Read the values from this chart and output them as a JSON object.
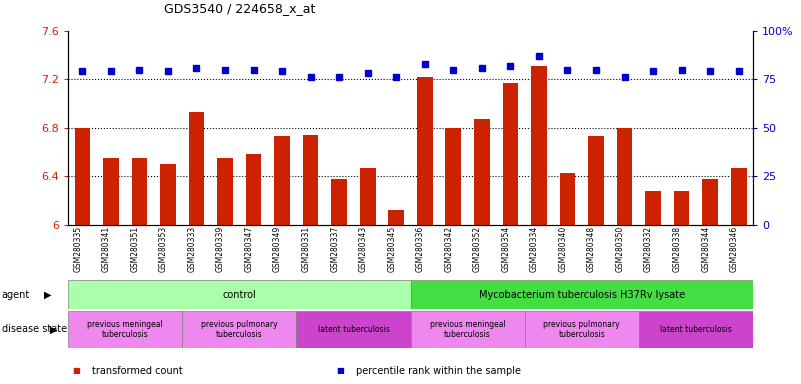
{
  "title": "GDS3540 / 224658_x_at",
  "samples": [
    "GSM280335",
    "GSM280341",
    "GSM280351",
    "GSM280353",
    "GSM280333",
    "GSM280339",
    "GSM280347",
    "GSM280349",
    "GSM280331",
    "GSM280337",
    "GSM280343",
    "GSM280345",
    "GSM280336",
    "GSM280342",
    "GSM280352",
    "GSM280354",
    "GSM280334",
    "GSM280340",
    "GSM280348",
    "GSM280350",
    "GSM280332",
    "GSM280338",
    "GSM280344",
    "GSM280346"
  ],
  "bar_values": [
    6.8,
    6.55,
    6.55,
    6.5,
    6.93,
    6.55,
    6.58,
    6.73,
    6.74,
    6.38,
    6.47,
    6.12,
    7.22,
    6.8,
    6.87,
    7.17,
    7.31,
    6.43,
    6.73,
    6.8,
    6.28,
    6.28,
    6.38,
    6.47
  ],
  "percentile_values": [
    79,
    79,
    80,
    79,
    81,
    80,
    80,
    79,
    76,
    76,
    78,
    76,
    83,
    80,
    81,
    82,
    87,
    80,
    80,
    76,
    79,
    80,
    79,
    79
  ],
  "ylim_left": [
    6.0,
    7.6
  ],
  "ylim_right": [
    0,
    100
  ],
  "yticks_left": [
    6.0,
    6.4,
    6.8,
    7.2,
    7.6
  ],
  "ytick_labels_left": [
    "6",
    "6.4",
    "6.8",
    "7.2",
    "7.6"
  ],
  "yticks_right": [
    0,
    25,
    50,
    75,
    100
  ],
  "ytick_labels_right": [
    "0",
    "25",
    "50",
    "75",
    "100%"
  ],
  "bar_color": "#cc2200",
  "dot_color": "#0000cc",
  "agent_groups": [
    {
      "label": "control",
      "start": 0,
      "end": 11,
      "color": "#aaffaa"
    },
    {
      "label": "Mycobacterium tuberculosis H37Rv lysate",
      "start": 12,
      "end": 23,
      "color": "#44dd44"
    }
  ],
  "disease_groups": [
    {
      "label": "previous meningeal\ntuberculosis",
      "start": 0,
      "end": 3,
      "color": "#ee88ee"
    },
    {
      "label": "previous pulmonary\ntuberculosis",
      "start": 4,
      "end": 7,
      "color": "#ee88ee"
    },
    {
      "label": "latent tuberculosis",
      "start": 8,
      "end": 11,
      "color": "#cc44cc"
    },
    {
      "label": "previous meningeal\ntuberculosis",
      "start": 12,
      "end": 15,
      "color": "#ee88ee"
    },
    {
      "label": "previous pulmonary\ntuberculosis",
      "start": 16,
      "end": 19,
      "color": "#ee88ee"
    },
    {
      "label": "latent tuberculosis",
      "start": 20,
      "end": 23,
      "color": "#cc44cc"
    }
  ],
  "legend_items": [
    {
      "label": "transformed count",
      "color": "#cc2200"
    },
    {
      "label": "percentile rank within the sample",
      "color": "#0000cc"
    }
  ],
  "agent_label": "agent",
  "disease_label": "disease state",
  "grid_values": [
    6.4,
    6.8,
    7.2
  ],
  "bar_width": 0.55,
  "ybase": 6.0
}
